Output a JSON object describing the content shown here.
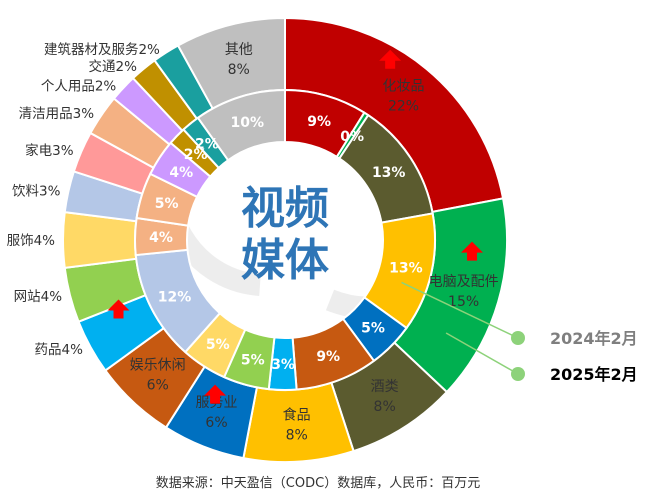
{
  "chart_data": {
    "type": "donut",
    "center_title": [
      "视频",
      "媒体"
    ],
    "source_note": "数据来源：中天盈信（CODC）数据库，人民币：百万元",
    "series": [
      {
        "name": "2025年2月",
        "ring": "outer",
        "slices": [
          {
            "category": "化妆品",
            "value_label": "22%",
            "value": 22,
            "color": "#c00000",
            "label_color": "#333333",
            "trend": "up"
          },
          {
            "category": "电脑及配件",
            "value_label": "15%",
            "value": 15,
            "color": "#00b050",
            "label_color": "#333333",
            "trend": "up"
          },
          {
            "category": "酒类",
            "value_label": "8%",
            "value": 8,
            "color": "#5b5b2f",
            "label_color": "#333333",
            "trend": null
          },
          {
            "category": "食品",
            "value_label": "8%",
            "value": 8,
            "color": "#ffc000",
            "label_color": "#333333",
            "trend": null
          },
          {
            "category": "服务业",
            "value_label": "6%",
            "value": 6,
            "color": "#0070c0",
            "label_color": "#333333",
            "trend": "up"
          },
          {
            "category": "娱乐休闲",
            "value_label": "6%",
            "value": 6,
            "color": "#c65911",
            "label_color": "#333333",
            "trend": null
          },
          {
            "category": "药品",
            "value_label": "4%",
            "value": 4,
            "color": "#00b0f0",
            "label_color": "#333333",
            "trend": "up"
          },
          {
            "category": "网站",
            "value_label": "4%",
            "value": 4,
            "color": "#92d050",
            "label_color": "#333333",
            "trend": null
          },
          {
            "category": "服饰",
            "value_label": "4%",
            "value": 4,
            "color": "#ffd966",
            "label_color": "#333333",
            "trend": null
          },
          {
            "category": "饮料",
            "value_label": "3%",
            "value": 3,
            "color": "#b4c7e7",
            "label_color": "#333333",
            "trend": null
          },
          {
            "category": "家电",
            "value_label": "3%",
            "value": 3,
            "color": "#ff9999",
            "label_color": "#333333",
            "trend": null
          },
          {
            "category": "清洁用品",
            "value_label": "3%",
            "value": 3,
            "color": "#f4b183",
            "label_color": "#333333",
            "trend": null
          },
          {
            "category": "个人用品",
            "value_label": "2%",
            "value": 2,
            "color": "#cc99ff",
            "label_color": "#333333",
            "trend": null
          },
          {
            "category": "交通",
            "value_label": "2%",
            "value": 2,
            "color": "#c09000",
            "label_color": "#333333",
            "trend": null
          },
          {
            "category": "建筑器材及服务",
            "value_label": "2%",
            "value": 2,
            "color": "#1a9f9f",
            "label_color": "#333333",
            "trend": null
          },
          {
            "category": "其他",
            "value_label": "8%",
            "value": 8,
            "color": "#bfbfbf",
            "label_color": "#333333",
            "trend": null
          }
        ]
      },
      {
        "name": "2024年2月",
        "ring": "inner",
        "slices": [
          {
            "value_label": "9%",
            "value": 9,
            "color": "#c00000"
          },
          {
            "value_label": "0%",
            "value": 0.5,
            "color": "#00b050"
          },
          {
            "value_label": "13%",
            "value": 13,
            "color": "#5b5b2f"
          },
          {
            "value_label": "13%",
            "value": 13,
            "color": "#ffc000"
          },
          {
            "value_label": "5%",
            "value": 5,
            "color": "#0070c0"
          },
          {
            "value_label": "9%",
            "value": 9,
            "color": "#c65911"
          },
          {
            "value_label": "3%",
            "value": 3,
            "color": "#00b0f0"
          },
          {
            "value_label": "5%",
            "value": 5,
            "color": "#92d050"
          },
          {
            "value_label": "5%",
            "value": 5,
            "color": "#ffd966"
          },
          {
            "value_label": "12%",
            "value": 12,
            "color": "#b4c7e7"
          },
          {
            "value_label": "4%",
            "value": 4,
            "color": "#f4b183"
          },
          {
            "value_label": "5%",
            "value": 5,
            "color": "#f4b183"
          },
          {
            "value_label": "4%",
            "value": 4,
            "color": "#cc99ff"
          },
          {
            "value_label": "2%",
            "value": 2,
            "color": "#c09000"
          },
          {
            "value_label": "2%",
            "value": 2,
            "color": "#1a9f9f"
          },
          {
            "value_label": "10%",
            "value": 10,
            "color": "#bfbfbf"
          }
        ]
      }
    ],
    "legend": [
      {
        "label": "2024年2月",
        "ring": "inner",
        "color": "#8dd27a",
        "text_color": "#7f7f7f"
      },
      {
        "label": "2025年2月",
        "ring": "outer",
        "color": "#8dd27a",
        "text_color": "#000000"
      }
    ],
    "colors": {
      "trend_arrow": "#ff0000",
      "center_title": "#2e75b6",
      "watermark": "#d9d9d9"
    }
  }
}
